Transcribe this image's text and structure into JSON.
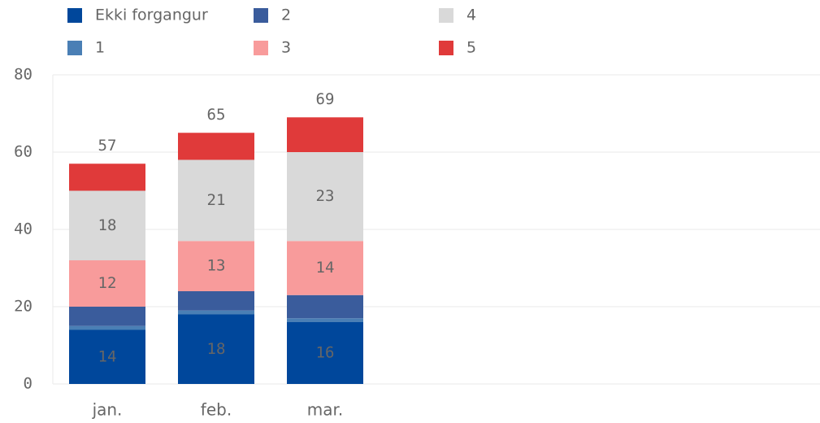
{
  "chart_data": {
    "type": "stacked_bar",
    "categories": [
      "jan.",
      "feb.",
      "mar."
    ],
    "series": [
      {
        "name": "Ekki forgangur",
        "color": "#00479b",
        "values": [
          14,
          18,
          16
        ],
        "labels": true
      },
      {
        "name": "1",
        "color": "#4a7fb5",
        "values": [
          1,
          1,
          1
        ],
        "labels": false
      },
      {
        "name": "2",
        "color": "#3a5c9c",
        "values": [
          5,
          5,
          6
        ],
        "labels": false
      },
      {
        "name": "3",
        "color": "#f89b9b",
        "values": [
          12,
          13,
          14
        ],
        "labels": true
      },
      {
        "name": "4",
        "color": "#d9d9d9",
        "values": [
          18,
          21,
          23
        ],
        "labels": true
      },
      {
        "name": "5",
        "color": "#e03a3a",
        "values": [
          7,
          7,
          9
        ],
        "labels": false
      }
    ],
    "totals": [
      57,
      65,
      69
    ],
    "ylim": [
      0,
      80
    ],
    "yticks": [
      0,
      20,
      40,
      60,
      80
    ],
    "grid": true
  }
}
